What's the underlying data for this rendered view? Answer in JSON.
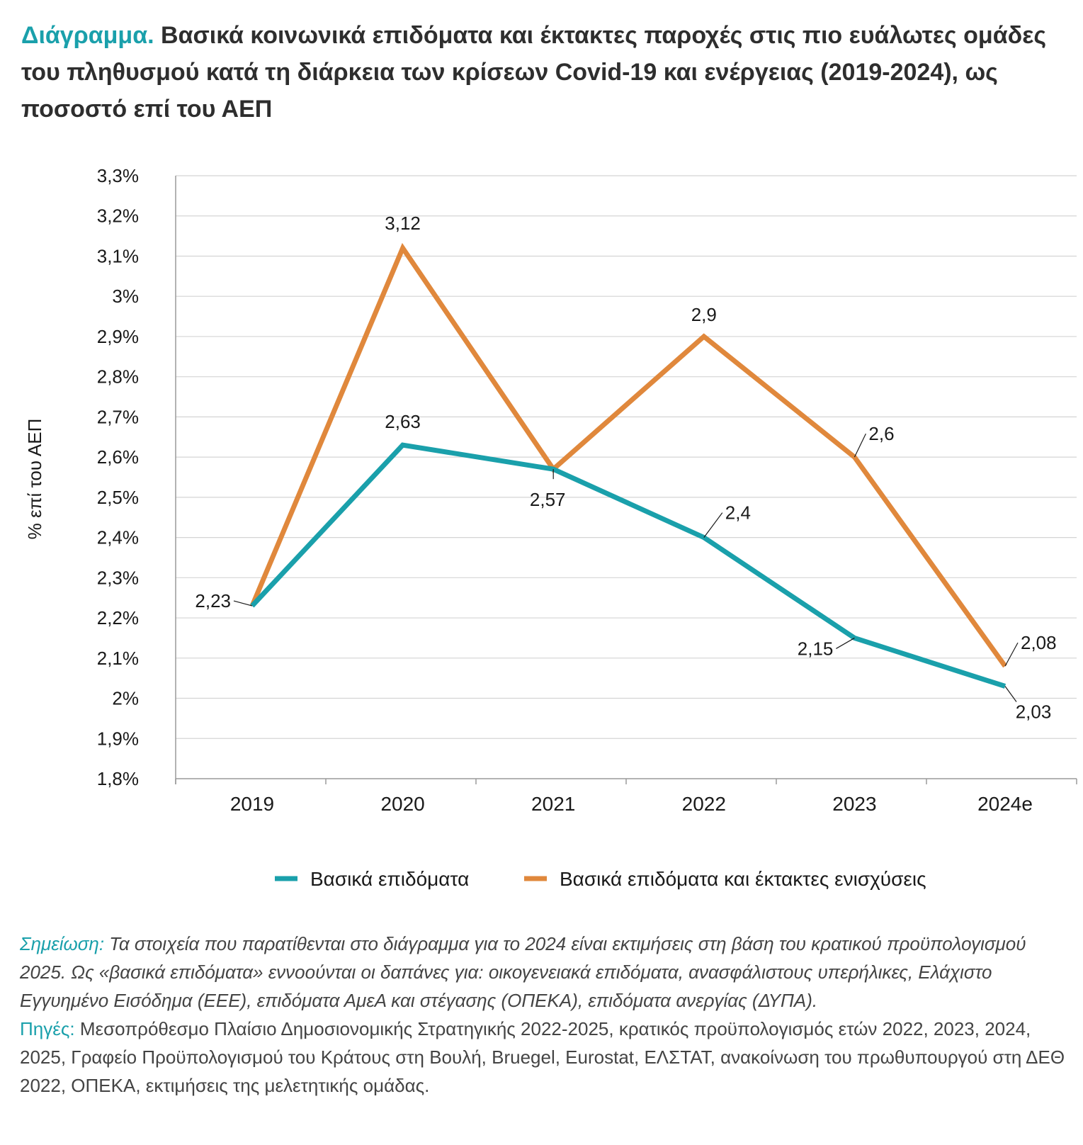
{
  "title": {
    "lead": "Διάγραμμα.",
    "text": "Βασικά κοινωνικά επιδόματα και έκτακτες παροχές στις πιο ευάλωτες ομάδες του πληθυσμού κατά τη διάρκεια των κρίσεων Covid-19 και ενέργειας (2019-2024), ως ποσοστό επί του ΑΕΠ"
  },
  "colors": {
    "teal": "#1aa0ab",
    "orange": "#e0883c",
    "grid": "#d4d4d4",
    "axis": "#9a9a9a"
  },
  "chart_data": {
    "type": "line",
    "title": "Βασικά κοινωνικά επιδόματα και έκτακτες παροχές στις πιο ευάλωτες ομάδες του πληθυσμού κατά τη διάρκεια των κρίσεων Covid-19 και ενέργειας (2019-2024), ως ποσοστό επί του ΑΕΠ",
    "xlabel": "",
    "ylabel": "% επί του ΑΕΠ",
    "categories": [
      "2019",
      "2020",
      "2021",
      "2022",
      "2023",
      "2024e"
    ],
    "ylim": [
      1.8,
      3.3
    ],
    "yticks": [
      1.8,
      1.9,
      2.0,
      2.1,
      2.2,
      2.3,
      2.4,
      2.5,
      2.6,
      2.7,
      2.8,
      2.9,
      3.0,
      3.1,
      3.2,
      3.3
    ],
    "ytick_labels": [
      "1,8%",
      "1,9%",
      "2%",
      "2,1%",
      "2,2%",
      "2,3%",
      "2,4%",
      "2,5%",
      "2,6%",
      "2,7%",
      "2,8%",
      "2,9%",
      "3%",
      "3,1%",
      "3,2%",
      "3,3%"
    ],
    "grid": true,
    "legend_position": "bottom",
    "series": [
      {
        "name": "Βασικά επιδόματα",
        "color": "#1aa0ab",
        "values": [
          2.23,
          2.63,
          2.57,
          2.4,
          2.15,
          2.03
        ],
        "labels": [
          "",
          "2,63",
          "",
          "2,4",
          "2,15",
          "2,03"
        ]
      },
      {
        "name": "Βασικά επιδόματα και έκτακτες ενισχύσεις",
        "color": "#e0883c",
        "values": [
          2.23,
          3.12,
          2.57,
          2.9,
          2.6,
          2.08
        ],
        "labels": [
          "2,23",
          "3,12",
          "2,57",
          "2,9",
          "2,6",
          "2,08"
        ]
      }
    ]
  },
  "notes": {
    "note_label": "Σημείωση:",
    "note_text": "Τα στοιχεία που παρατίθενται στο διάγραμμα για το 2024 είναι εκτιμήσεις στη βάση του κρατικού προϋπολογισμού 2025. Ως «βασικά επιδόματα» εννοούνται οι δαπάνες για: οικογενειακά επιδόματα, ανασφάλιστους υπερήλικες, Ελάχιστο Εγγυημένο Εισόδημα (ΕΕΕ), επιδόματα ΑμεΑ και στέγασης (ΟΠΕΚΑ), επιδόματα ανεργίας (ΔΥΠΑ).",
    "sources_label": "Πηγές:",
    "sources_text": "Μεσοπρόθεσμο Πλαίσιο Δημοσιονομικής Στρατηγικής 2022-2025, κρατικός προϋπολογισμός ετών 2022, 2023, 2024, 2025, Γραφείο Προϋπολογισμού του Κράτους στη Βουλή, Bruegel, Eurostat, ΕΛΣΤΑΤ, ανακοίνωση του πρωθυπουργού στη ΔΕΘ 2022, ΟΠΕΚΑ, εκτιμήσεις της μελετητικής ομάδας."
  }
}
